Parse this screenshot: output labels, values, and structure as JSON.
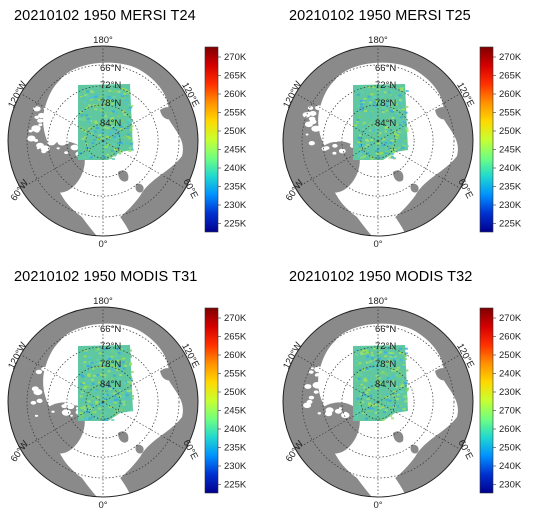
{
  "panels": [
    {
      "title": "20210102 1950 MERSI T24",
      "colorbar": [
        "270K",
        "265K",
        "260K",
        "255K",
        "250K",
        "245K",
        "240K",
        "235K",
        "230K",
        "225K"
      ]
    },
    {
      "title": "20210102 1950 MERSI T25",
      "colorbar": [
        "270K",
        "265K",
        "260K",
        "255K",
        "250K",
        "245K",
        "240K",
        "235K",
        "230K",
        "225K"
      ]
    },
    {
      "title": "20210102 1950 MODIS T31",
      "colorbar": [
        "270K",
        "265K",
        "260K",
        "255K",
        "250K",
        "245K",
        "240K",
        "235K",
        "230K",
        "225K"
      ]
    },
    {
      "title": "20210102 1950 MODIS T32",
      "colorbar": [
        "270K",
        "260K",
        "250K",
        "240K",
        "230K",
        "270K",
        "260K",
        "250K",
        "240K",
        "230K"
      ]
    }
  ],
  "map_labels": {
    "lon_180": "180°",
    "lon_0": "0°",
    "lon_120w": "120°W",
    "lon_60w": "60°W",
    "lon_120e": "120°E",
    "lon_60e": "60°E",
    "lat_66": "66°N",
    "lat_72": "72°N",
    "lat_78": "78°N",
    "lat_84": "84°N"
  },
  "colors": {
    "land": "#8a8a8a",
    "ocean": "#ffffff",
    "swath_main": "#5fc8a0",
    "colormap": [
      "#7f0000",
      "#d40000",
      "#ff3000",
      "#ff9000",
      "#ffd800",
      "#c8ff30",
      "#70ff80",
      "#20d8d0",
      "#0090ff",
      "#0030d0",
      "#00008f"
    ]
  }
}
